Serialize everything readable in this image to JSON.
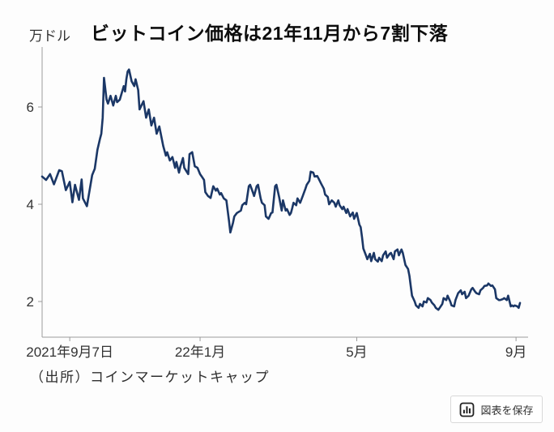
{
  "page": {
    "title": "ビットコイン価格は21年11月から7割下落",
    "unit_label": "万ドル",
    "source": "（出所）コインマーケットキャップ",
    "save_button": {
      "label": "図表を保存",
      "icon": "bar-chart-icon"
    }
  },
  "colors": {
    "line": "#1b3766",
    "axis": "#9a9a9a",
    "tick_text": "#333333",
    "title_text": "#0d0d0d",
    "background": "#fdfdfd",
    "button_border": "#d8d8d8",
    "icon": "#222222"
  },
  "chart_data": {
    "type": "line",
    "title": "ビットコイン価格は21年11月から7割下落",
    "ylabel": "万ドル",
    "xlabel": "",
    "source": "（出所）コインマーケットキャップ",
    "grid": false,
    "legend": false,
    "y_axis": {
      "ticks": [
        2,
        4,
        6
      ],
      "range": [
        1.27,
        7.23
      ],
      "unit": "万ドル (10,000 USD)"
    },
    "x_axis": {
      "unit": "days_from_series_start",
      "range_days": [
        0,
        371
      ],
      "ticks": [
        {
          "label": "2021年9月7日",
          "day": 21
        },
        {
          "label": "22年1月",
          "day": 120
        },
        {
          "label": "5月",
          "day": 239
        },
        {
          "label": "9月",
          "day": 360
        }
      ]
    },
    "series": [
      {
        "name": "ビットコイン価格",
        "points": [
          [
            0,
            4.57
          ],
          [
            3,
            4.5
          ],
          [
            6,
            4.62
          ],
          [
            9,
            4.41
          ],
          [
            13,
            4.7
          ],
          [
            15,
            4.68
          ],
          [
            18,
            4.29
          ],
          [
            21,
            4.46
          ],
          [
            23,
            4.04
          ],
          [
            25,
            4.4
          ],
          [
            28,
            4.09
          ],
          [
            30,
            4.51
          ],
          [
            31,
            4.12
          ],
          [
            34,
            3.96
          ],
          [
            38,
            4.6
          ],
          [
            40,
            4.73
          ],
          [
            42,
            5.12
          ],
          [
            44,
            5.35
          ],
          [
            45,
            5.45
          ],
          [
            46,
            5.78
          ],
          [
            47,
            6.6
          ],
          [
            49,
            6.15
          ],
          [
            50,
            6.07
          ],
          [
            52,
            6.23
          ],
          [
            54,
            6.03
          ],
          [
            56,
            6.23
          ],
          [
            57,
            6.1
          ],
          [
            59,
            6.15
          ],
          [
            62,
            6.43
          ],
          [
            63,
            6.32
          ],
          [
            64,
            6.57
          ],
          [
            65,
            6.73
          ],
          [
            66,
            6.77
          ],
          [
            68,
            6.53
          ],
          [
            70,
            6.43
          ],
          [
            71,
            6.57
          ],
          [
            73,
            6.35
          ],
          [
            74,
            5.95
          ],
          [
            77,
            6.12
          ],
          [
            79,
            5.78
          ],
          [
            81,
            5.95
          ],
          [
            83,
            5.62
          ],
          [
            85,
            5.78
          ],
          [
            87,
            5.45
          ],
          [
            89,
            5.6
          ],
          [
            92,
            5.2
          ],
          [
            94,
            5.0
          ],
          [
            95,
            5.07
          ],
          [
            97,
            4.9
          ],
          [
            99,
            4.97
          ],
          [
            101,
            4.75
          ],
          [
            102,
            4.87
          ],
          [
            104,
            4.65
          ],
          [
            105,
            4.78
          ],
          [
            107,
            4.95
          ],
          [
            108,
            4.75
          ],
          [
            111,
            4.62
          ],
          [
            112,
            5.03
          ],
          [
            114,
            5.07
          ],
          [
            116,
            4.78
          ],
          [
            118,
            4.75
          ],
          [
            120,
            4.62
          ],
          [
            121,
            4.58
          ],
          [
            123,
            4.5
          ],
          [
            124,
            4.25
          ],
          [
            126,
            4.17
          ],
          [
            128,
            4.13
          ],
          [
            130,
            4.37
          ],
          [
            132,
            4.28
          ],
          [
            133,
            4.32
          ],
          [
            135,
            4.2
          ],
          [
            136,
            4.23
          ],
          [
            138,
            4.12
          ],
          [
            140,
            4.08
          ],
          [
            142,
            3.65
          ],
          [
            143,
            3.42
          ],
          [
            145,
            3.62
          ],
          [
            146,
            3.75
          ],
          [
            148,
            3.82
          ],
          [
            151,
            3.87
          ],
          [
            152,
            3.98
          ],
          [
            154,
            4.03
          ],
          [
            155,
            4.0
          ],
          [
            157,
            4.37
          ],
          [
            158,
            4.4
          ],
          [
            160,
            4.25
          ],
          [
            161,
            4.17
          ],
          [
            163,
            4.37
          ],
          [
            164,
            4.4
          ],
          [
            166,
            4.12
          ],
          [
            167,
            4.03
          ],
          [
            169,
            3.98
          ],
          [
            170,
            3.75
          ],
          [
            172,
            3.7
          ],
          [
            174,
            3.82
          ],
          [
            175,
            3.83
          ],
          [
            177,
            4.37
          ],
          [
            178,
            4.4
          ],
          [
            180,
            4.15
          ],
          [
            182,
            3.87
          ],
          [
            183,
            4.08
          ],
          [
            185,
            3.87
          ],
          [
            186,
            3.9
          ],
          [
            188,
            3.78
          ],
          [
            189,
            3.82
          ],
          [
            190,
            3.92
          ],
          [
            191,
            4.03
          ],
          [
            193,
            3.98
          ],
          [
            194,
            4.12
          ],
          [
            196,
            4.03
          ],
          [
            198,
            4.17
          ],
          [
            200,
            4.32
          ],
          [
            201,
            4.4
          ],
          [
            203,
            4.48
          ],
          [
            204,
            4.67
          ],
          [
            206,
            4.65
          ],
          [
            207,
            4.57
          ],
          [
            209,
            4.58
          ],
          [
            210,
            4.53
          ],
          [
            212,
            4.42
          ],
          [
            214,
            4.32
          ],
          [
            215,
            4.2
          ],
          [
            217,
            4.15
          ],
          [
            218,
            4.0
          ],
          [
            220,
            4.08
          ],
          [
            222,
            4.03
          ],
          [
            223,
            3.95
          ],
          [
            225,
            4.08
          ],
          [
            226,
            3.98
          ],
          [
            228,
            3.9
          ],
          [
            229,
            3.95
          ],
          [
            231,
            3.82
          ],
          [
            232,
            3.9
          ],
          [
            234,
            3.75
          ],
          [
            236,
            3.83
          ],
          [
            237,
            3.7
          ],
          [
            239,
            3.82
          ],
          [
            241,
            3.58
          ],
          [
            242,
            3.53
          ],
          [
            243,
            3.32
          ],
          [
            244,
            3.09
          ],
          [
            246,
            2.95
          ],
          [
            247,
            2.87
          ],
          [
            249,
            2.98
          ],
          [
            250,
            2.83
          ],
          [
            252,
            3.0
          ],
          [
            253,
            2.87
          ],
          [
            255,
            2.82
          ],
          [
            256,
            2.9
          ],
          [
            258,
            2.83
          ],
          [
            259,
            2.95
          ],
          [
            261,
            3.03
          ],
          [
            262,
            2.9
          ],
          [
            264,
            2.98
          ],
          [
            265,
            3.0
          ],
          [
            267,
            2.87
          ],
          [
            268,
            3.03
          ],
          [
            270,
            3.07
          ],
          [
            271,
            2.95
          ],
          [
            273,
            3.07
          ],
          [
            274,
            3.0
          ],
          [
            276,
            2.75
          ],
          [
            278,
            2.67
          ],
          [
            279,
            2.53
          ],
          [
            280,
            2.32
          ],
          [
            281,
            2.12
          ],
          [
            283,
            2.0
          ],
          [
            284,
            1.92
          ],
          [
            286,
            1.87
          ],
          [
            287,
            1.95
          ],
          [
            289,
            1.9
          ],
          [
            290,
            2.0
          ],
          [
            292,
            1.98
          ],
          [
            293,
            2.07
          ],
          [
            295,
            2.03
          ],
          [
            296,
            1.98
          ],
          [
            298,
            1.92
          ],
          [
            299,
            1.87
          ],
          [
            301,
            1.83
          ],
          [
            302,
            1.87
          ],
          [
            304,
            1.95
          ],
          [
            305,
            2.07
          ],
          [
            307,
            2.03
          ],
          [
            308,
            2.12
          ],
          [
            310,
            2.0
          ],
          [
            311,
            1.92
          ],
          [
            313,
            1.9
          ],
          [
            314,
            2.03
          ],
          [
            316,
            2.17
          ],
          [
            318,
            2.23
          ],
          [
            319,
            2.15
          ],
          [
            321,
            2.2
          ],
          [
            322,
            2.07
          ],
          [
            324,
            2.12
          ],
          [
            326,
            2.25
          ],
          [
            327,
            2.28
          ],
          [
            329,
            2.2
          ],
          [
            330,
            2.17
          ],
          [
            332,
            2.15
          ],
          [
            333,
            2.23
          ],
          [
            335,
            2.28
          ],
          [
            336,
            2.32
          ],
          [
            338,
            2.33
          ],
          [
            339,
            2.37
          ],
          [
            341,
            2.32
          ],
          [
            342,
            2.33
          ],
          [
            344,
            2.25
          ],
          [
            345,
            2.07
          ],
          [
            347,
            2.03
          ],
          [
            348,
            2.03
          ],
          [
            350,
            2.05
          ],
          [
            351,
            2.07
          ],
          [
            353,
            2.03
          ],
          [
            354,
            2.12
          ],
          [
            356,
            1.9
          ],
          [
            357,
            1.92
          ],
          [
            358,
            1.9
          ],
          [
            359,
            1.92
          ],
          [
            361,
            1.9
          ],
          [
            362,
            1.87
          ],
          [
            363,
            1.97
          ]
        ]
      }
    ]
  }
}
